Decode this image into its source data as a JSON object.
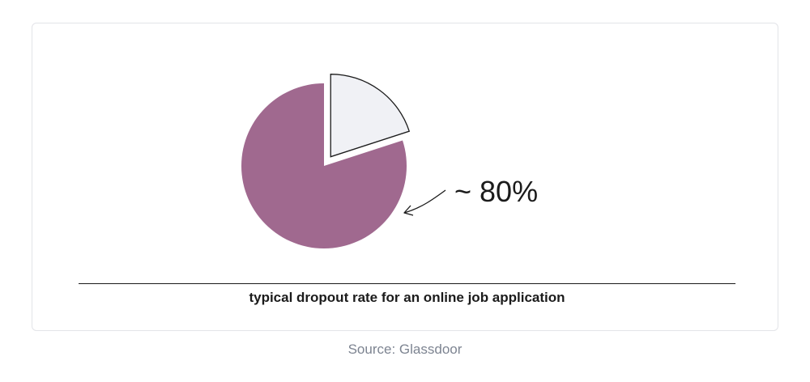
{
  "chart_data": {
    "type": "pie",
    "values": [
      80,
      20
    ],
    "colors": [
      "#a0698f",
      "#f0f1f5"
    ],
    "exploded": [
      false,
      true
    ],
    "annotation": "~ 80%",
    "caption": "typical dropout rate for an online job application"
  },
  "footer": {
    "source": "Source: Glassdoor"
  }
}
